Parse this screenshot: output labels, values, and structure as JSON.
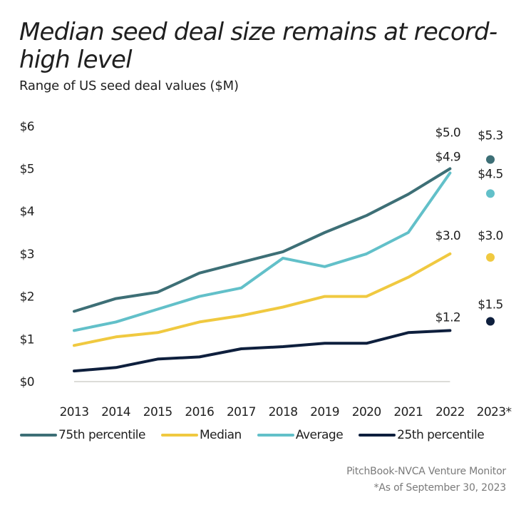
{
  "title": "Median seed deal size remains at record-high level",
  "subtitle": "Range of US seed deal values ($M)",
  "source": "PitchBook-NVCA Venture Monitor",
  "footnote": "*As of September 30, 2023",
  "chart_data": {
    "type": "line",
    "title": "Median seed deal size remains at record-high level",
    "subtitle": "Range of US seed deal values ($M)",
    "xlabel": "",
    "ylabel": "",
    "categories": [
      "2013",
      "2014",
      "2015",
      "2016",
      "2017",
      "2018",
      "2019",
      "2020",
      "2021",
      "2022",
      "2023*"
    ],
    "y_ticks": [
      "$0",
      "$1",
      "$2",
      "$3",
      "$4",
      "$5",
      "$6"
    ],
    "ylim": [
      0,
      6
    ],
    "grid": false,
    "legend_position": "bottom",
    "series": [
      {
        "name": "75th percentile",
        "color": "#3d6f76",
        "values": [
          1.65,
          1.95,
          2.1,
          2.55,
          2.8,
          3.05,
          3.5,
          3.9,
          4.4,
          5.0,
          5.3
        ]
      },
      {
        "name": "Median",
        "color": "#f0c940",
        "values": [
          0.85,
          1.05,
          1.15,
          1.4,
          1.55,
          1.75,
          2.0,
          2.0,
          2.45,
          3.0,
          3.0
        ]
      },
      {
        "name": "Average",
        "color": "#62c0c9",
        "values": [
          1.2,
          1.4,
          1.7,
          2.0,
          2.2,
          2.9,
          2.7,
          3.0,
          3.5,
          4.9,
          4.5
        ]
      },
      {
        "name": "25th percentile",
        "color": "#0e1f3d",
        "values": [
          0.25,
          0.33,
          0.53,
          0.58,
          0.77,
          0.82,
          0.9,
          0.9,
          1.15,
          1.2,
          1.5
        ]
      }
    ],
    "data_labels": [
      {
        "series": "75th percentile",
        "category": "2022",
        "text": "$5.0"
      },
      {
        "series": "Average",
        "category": "2022",
        "text": "$4.9"
      },
      {
        "series": "Median",
        "category": "2022",
        "text": "$3.0"
      },
      {
        "series": "25th percentile",
        "category": "2022",
        "text": "$1.2"
      },
      {
        "series": "75th percentile",
        "category": "2023*",
        "text": "$5.3"
      },
      {
        "series": "Average",
        "category": "2023*",
        "text": "$4.5"
      },
      {
        "series": "Median",
        "category": "2023*",
        "text": "$3.0"
      },
      {
        "series": "25th percentile",
        "category": "2023*",
        "text": "$1.5"
      }
    ],
    "note": "2023* shown as standalone points (not connected to the lines)"
  }
}
